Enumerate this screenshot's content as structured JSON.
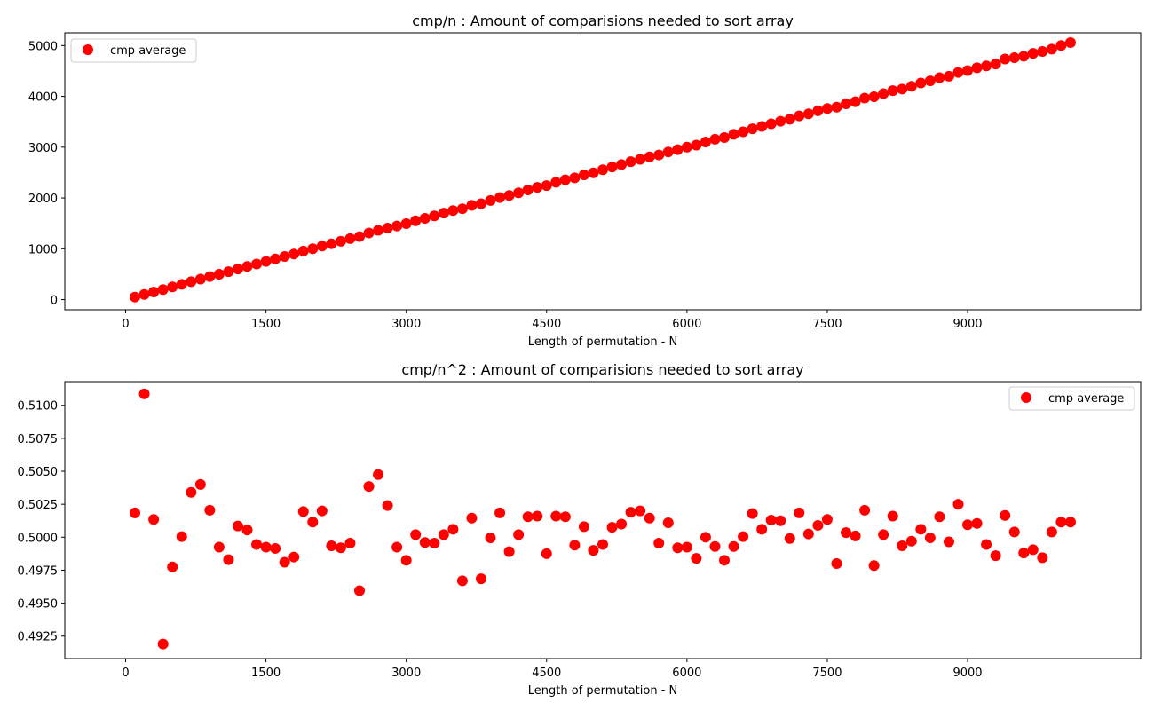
{
  "chart_data": [
    {
      "type": "scatter",
      "title": "cmp/n : Amount of comparisions needed to sort array",
      "xlabel": "Length of permutation - N",
      "ylabel": "",
      "xlim": [
        -650,
        10850
      ],
      "ylim": [
        -200,
        5250
      ],
      "xticks": [
        0,
        1500,
        3000,
        4500,
        6000,
        7500,
        9000
      ],
      "yticks": [
        0,
        1000,
        2000,
        3000,
        4000,
        5000
      ],
      "legend": {
        "position": "top-left"
      },
      "series": [
        {
          "name": "cmp average",
          "color": "#ff0000",
          "marker": "circle",
          "x": [
            100,
            200,
            300,
            400,
            500,
            600,
            700,
            800,
            900,
            1000,
            1100,
            1200,
            1300,
            1400,
            1500,
            1600,
            1700,
            1800,
            1900,
            2000,
            2100,
            2200,
            2300,
            2400,
            2500,
            2600,
            2700,
            2800,
            2900,
            3000,
            3100,
            3200,
            3300,
            3400,
            3500,
            3600,
            3700,
            3800,
            3900,
            4000,
            4100,
            4200,
            4300,
            4400,
            4500,
            4600,
            4700,
            4800,
            4900,
            5000,
            5100,
            5200,
            5300,
            5400,
            5500,
            5600,
            5700,
            5800,
            5900,
            6000,
            6100,
            6200,
            6300,
            6400,
            6500,
            6600,
            6700,
            6800,
            6900,
            7000,
            7100,
            7200,
            7300,
            7400,
            7500,
            7600,
            7700,
            7800,
            7900,
            8000,
            8100,
            8200,
            8300,
            8400,
            8500,
            8600,
            8700,
            8800,
            8900,
            9000,
            9100,
            9200,
            9300,
            9400,
            9500,
            9600,
            9700,
            9800,
            9900,
            10000,
            10100
          ],
          "y": [
            50,
            102,
            150,
            197,
            249,
            300,
            352,
            403,
            452,
            499,
            548,
            601,
            652,
            699,
            749,
            799,
            847,
            897,
            954,
            1001,
            1054,
            1098,
            1148,
            1199,
            1240,
            1310,
            1363,
            1407,
            1448,
            1495,
            1551,
            1599,
            1648,
            1701,
            1752,
            1788,
            1855,
            1888,
            1950,
            2008,
            2048,
            2101,
            2158,
            2208,
            2244,
            2308,
            2357,
            2397,
            2454,
            2495,
            2555,
            2610,
            2658,
            2715,
            2761,
            2808,
            2847,
            2906,
            2950,
            3001,
            3040,
            3102,
            3155,
            3189,
            3253,
            3303,
            3362,
            3407,
            3459,
            3509,
            3549,
            3614,
            3655,
            3715,
            3760,
            3788,
            3852,
            3895,
            3966,
            3993,
            4054,
            4113,
            4144,
            4198,
            4262,
            4304,
            4367,
            4397,
            4471,
            4508,
            4563,
            4600,
            4637,
            4734,
            4761,
            4789,
            4846,
            4883,
            4929,
            5001,
            5057
          ]
        }
      ]
    },
    {
      "type": "scatter",
      "title": "cmp/n^2 : Amount of comparisions needed to sort array",
      "xlabel": "Length of permutation - N",
      "ylabel": "",
      "xlim": [
        -650,
        10850
      ],
      "ylim": [
        0.4908,
        0.5118
      ],
      "xticks": [
        0,
        1500,
        3000,
        4500,
        6000,
        7500,
        9000
      ],
      "yticks": [
        0.4925,
        0.495,
        0.4975,
        0.5,
        0.5025,
        0.505,
        0.5075,
        0.51
      ],
      "legend": {
        "position": "top-right"
      },
      "series": [
        {
          "name": "cmp average",
          "color": "#ff0000",
          "marker": "circle",
          "x": [
            100,
            200,
            300,
            400,
            500,
            600,
            700,
            800,
            900,
            1000,
            1100,
            1200,
            1300,
            1400,
            1500,
            1600,
            1700,
            1800,
            1900,
            2000,
            2100,
            2200,
            2300,
            2400,
            2500,
            2600,
            2700,
            2800,
            2900,
            3000,
            3100,
            3200,
            3300,
            3400,
            3500,
            3600,
            3700,
            3800,
            3900,
            4000,
            4100,
            4200,
            4300,
            4400,
            4500,
            4600,
            4700,
            4800,
            4900,
            5000,
            5100,
            5200,
            5300,
            5400,
            5500,
            5600,
            5700,
            5800,
            5900,
            6000,
            6100,
            6200,
            6300,
            6400,
            6500,
            6600,
            6700,
            6800,
            6900,
            7000,
            7100,
            7200,
            7300,
            7400,
            7500,
            7600,
            7700,
            7800,
            7900,
            8000,
            8100,
            8200,
            8300,
            8400,
            8500,
            8600,
            8700,
            8800,
            8900,
            9000,
            9100,
            9200,
            9300,
            9400,
            9500,
            9600,
            9700,
            9800,
            9900,
            10000,
            10100
          ],
          "y": [
            0.50185,
            0.51087,
            0.50135,
            0.4919,
            0.49775,
            0.50005,
            0.5034,
            0.504,
            0.50205,
            0.49925,
            0.4983,
            0.50085,
            0.50055,
            0.49945,
            0.49925,
            0.49915,
            0.4981,
            0.4985,
            0.50195,
            0.50115,
            0.502,
            0.49935,
            0.4992,
            0.49955,
            0.49595,
            0.50385,
            0.50475,
            0.5024,
            0.49925,
            0.49825,
            0.5002,
            0.4996,
            0.49955,
            0.5002,
            0.5006,
            0.4967,
            0.50145,
            0.49685,
            0.49995,
            0.50185,
            0.4989,
            0.5002,
            0.50155,
            0.5016,
            0.49875,
            0.5016,
            0.50155,
            0.4994,
            0.5008,
            0.499,
            0.49945,
            0.50075,
            0.501,
            0.5019,
            0.502,
            0.50145,
            0.49955,
            0.5011,
            0.4992,
            0.49925,
            0.4984,
            0.5,
            0.4993,
            0.49825,
            0.4993,
            0.50005,
            0.5018,
            0.5006,
            0.5013,
            0.50125,
            0.4999,
            0.50185,
            0.50025,
            0.5009,
            0.50135,
            0.498,
            0.50035,
            0.5001,
            0.50205,
            0.49785,
            0.5002,
            0.5016,
            0.49935,
            0.4997,
            0.5006,
            0.49995,
            0.50155,
            0.49965,
            0.5025,
            0.50095,
            0.50105,
            0.49945,
            0.4986,
            0.50165,
            0.5004,
            0.4988,
            0.49905,
            0.49845,
            0.5004,
            0.50115,
            0.50115
          ]
        }
      ]
    }
  ]
}
